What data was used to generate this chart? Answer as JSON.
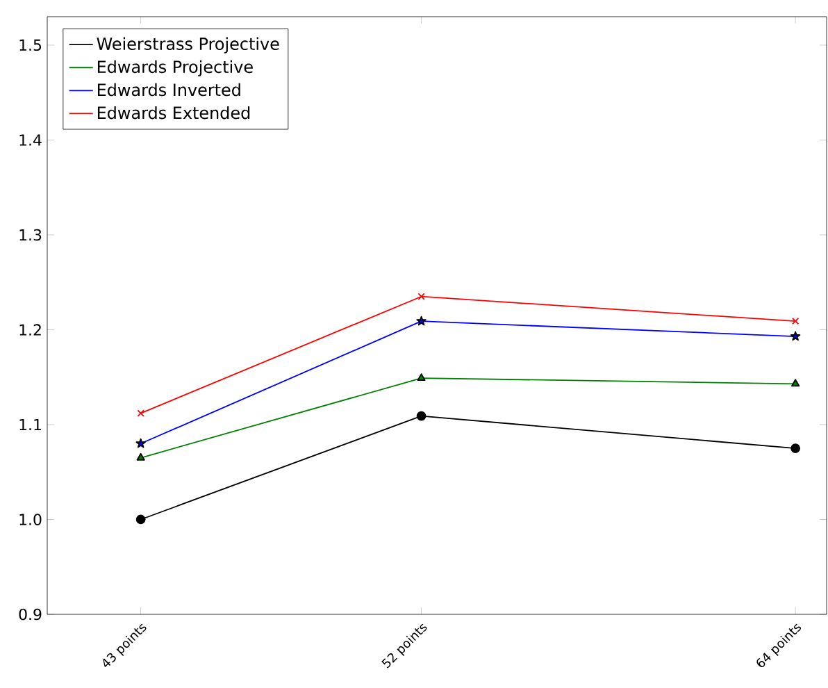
{
  "chart_data": {
    "type": "line",
    "x": [
      43,
      52,
      64
    ],
    "xlim": [
      40,
      65
    ],
    "ylim": [
      0.9,
      1.53
    ],
    "xticks": [
      {
        "value": 43,
        "label": "43 points"
      },
      {
        "value": 52,
        "label": "52 points"
      },
      {
        "value": 64,
        "label": "64 points"
      }
    ],
    "yticks": [
      0.9,
      {
        "value": 1.0,
        "label": "1.0"
      },
      1.1,
      1.2,
      1.3,
      1.4,
      1.5
    ],
    "grid": false,
    "legend": "top left",
    "line_style": "solid",
    "series": [
      {
        "name": "Weierstrass Projective",
        "color": "#000000",
        "marker": "circle",
        "values": [
          1.0,
          1.109,
          1.075
        ]
      },
      {
        "name": "Edwards Projective",
        "color": "#008000",
        "marker": "triangle",
        "values": [
          1.065,
          1.149,
          1.143
        ]
      },
      {
        "name": "Edwards Inverted",
        "color": "#0000ff",
        "marker": "star",
        "values": [
          1.08,
          1.209,
          1.193
        ]
      },
      {
        "name": "Edwards Extended",
        "color": "#ff0000",
        "marker": "cross",
        "values": [
          1.112,
          1.235,
          1.209
        ]
      }
    ]
  }
}
